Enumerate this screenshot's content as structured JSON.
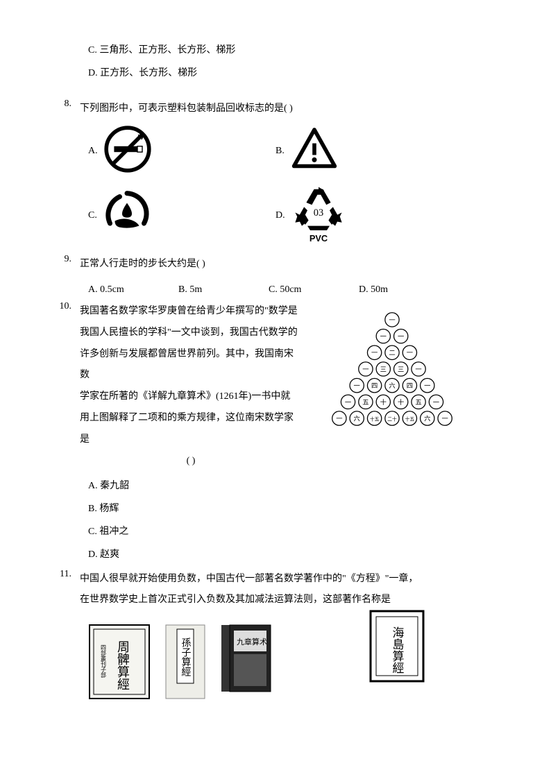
{
  "q7": {
    "optC": "C. 三角形、正方形、长方形、梯形",
    "optD": "D. 正方形、长方形、梯形"
  },
  "q8": {
    "num": "8.",
    "text": "下列图形中，可表示塑料包装制品回收标志的是(    )",
    "labelA": "A.",
    "labelB": "B.",
    "labelC": "C.",
    "labelD": "D.",
    "iconA": "no-smoking-icon",
    "iconB": "warning-triangle-icon",
    "iconC": "hand-water-icon",
    "iconD": "recycle-pvc-icon",
    "pvcCode": "03",
    "pvcText": "PVC"
  },
  "q9": {
    "num": "9.",
    "text": "正常人行走时的步长大约是(    )",
    "optA": "A. 0.5cm",
    "optB": "B. 5m",
    "optC": "C. 50cm",
    "optD": "D. 50m"
  },
  "q10": {
    "num": "10.",
    "line1": "我国著名数学家华罗庚曾在给青少年撰写的\"数学是",
    "line2": "我国人民擅长的学科\"一文中谈到，我国古代数学的",
    "line3": "许多创新与发展都曾居世界前列。其中，我国南宋数",
    "line4": "学家在所著的《详解九章算术》(1261年)一书中就",
    "line5": "用上图解释了二项和的乘方规律，这位南宋数学家是",
    "line6": "(    )",
    "optA": "A. 秦九韶",
    "optB": "B. 杨辉",
    "optC": "C. 祖冲之",
    "optD": "D. 赵爽",
    "triangle": {
      "rows": [
        [
          "一"
        ],
        [
          "一",
          "一"
        ],
        [
          "一",
          "二",
          "一"
        ],
        [
          "一",
          "三",
          "三",
          "一"
        ],
        [
          "一",
          "四",
          "六",
          "四",
          "一"
        ],
        [
          "一",
          "五",
          "十",
          "十",
          "五",
          "一"
        ],
        [
          "一",
          "六",
          "十五",
          "二十",
          "十五",
          "六",
          "一"
        ]
      ]
    }
  },
  "q11": {
    "num": "11.",
    "line1": "中国人很早就开始使用负数，中国古代一部著名数学著作中的\"《方程》\"一章，",
    "line2": "在世界数学史上首次正式引入负数及其加减法运算法则，这部著作名称是",
    "bookA": "周髀算經",
    "bookASide": "四部叢刊子部",
    "bookB": "孫子算經",
    "bookC": "九章算术",
    "bookD": "海島算經"
  },
  "colors": {
    "black": "#000000",
    "white": "#ffffff",
    "gray": "#888888",
    "lightgray": "#cccccc"
  }
}
